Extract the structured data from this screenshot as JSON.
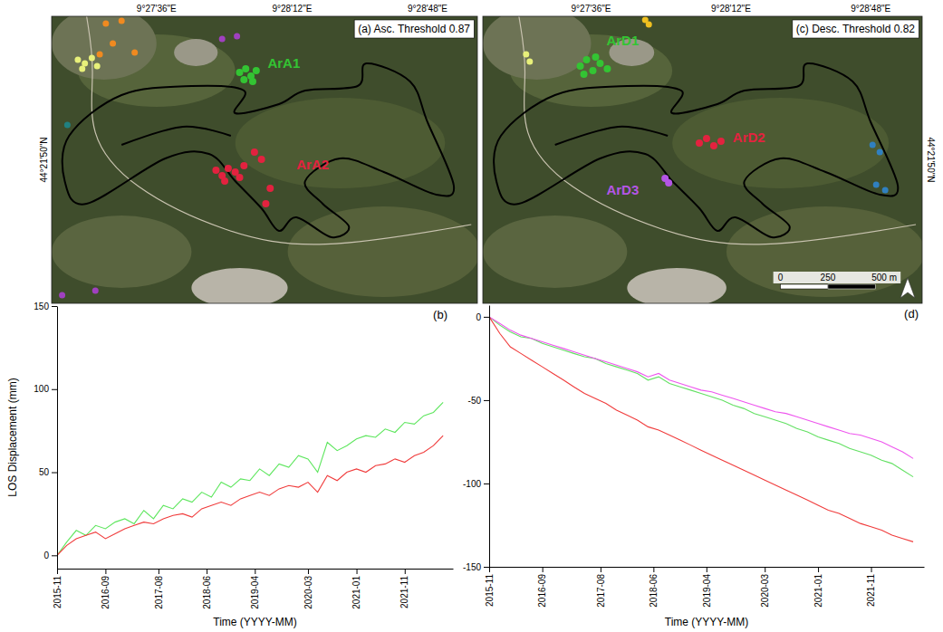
{
  "chart_data": [
    {
      "type": "line",
      "title": "(b)",
      "x_label": "Time (YYYY-MM)",
      "y_label": "LOS Displacement (mm)",
      "x": [
        "2015-11",
        "2016-01",
        "2016-03",
        "2016-05",
        "2016-07",
        "2016-09",
        "2016-11",
        "2017-01",
        "2017-03",
        "2017-05",
        "2017-07",
        "2017-09",
        "2017-11",
        "2018-01",
        "2018-03",
        "2018-05",
        "2018-07",
        "2018-09",
        "2018-11",
        "2019-01",
        "2019-03",
        "2019-05",
        "2019-07",
        "2019-09",
        "2019-11",
        "2020-01",
        "2020-03",
        "2020-05",
        "2020-07",
        "2020-09",
        "2020-11",
        "2021-01",
        "2021-03",
        "2021-05",
        "2021-07",
        "2021-09",
        "2021-11",
        "2022-01",
        "2022-03",
        "2022-05",
        "2022-07"
      ],
      "xlim": [
        "2015-11",
        "2022-09"
      ],
      "xticks": [
        "2015-11",
        "2016-09",
        "2017-08",
        "2018-06",
        "2019-04",
        "2020-03",
        "2021-01",
        "2021-11"
      ],
      "ylim": [
        -8,
        150
      ],
      "yticks": [
        0,
        50,
        100,
        150
      ],
      "series": [
        {
          "color": "#5ee65e",
          "values": [
            0,
            8,
            15,
            12,
            18,
            16,
            20,
            22,
            19,
            27,
            22,
            30,
            28,
            34,
            32,
            38,
            35,
            44,
            41,
            46,
            45,
            52,
            48,
            55,
            53,
            60,
            58,
            50,
            68,
            63,
            66,
            70,
            72,
            71,
            76,
            74,
            80,
            79,
            84,
            86,
            92
          ]
        },
        {
          "color": "#f03c3c",
          "values": [
            0,
            6,
            10,
            12,
            14,
            10,
            13,
            16,
            18,
            20,
            19,
            22,
            24,
            25,
            23,
            28,
            30,
            32,
            30,
            34,
            36,
            38,
            36,
            40,
            42,
            41,
            44,
            38,
            48,
            45,
            50,
            52,
            50,
            54,
            55,
            58,
            56,
            60,
            62,
            66,
            72
          ]
        }
      ]
    },
    {
      "type": "line",
      "title": "(d)",
      "x_label": "Time (YYYY-MM)",
      "x": [
        "2015-11",
        "2016-01",
        "2016-03",
        "2016-05",
        "2016-07",
        "2016-09",
        "2016-11",
        "2017-01",
        "2017-03",
        "2017-05",
        "2017-07",
        "2017-09",
        "2017-11",
        "2018-01",
        "2018-03",
        "2018-05",
        "2018-07",
        "2018-09",
        "2018-11",
        "2019-01",
        "2019-03",
        "2019-05",
        "2019-07",
        "2019-09",
        "2019-11",
        "2020-01",
        "2020-03",
        "2020-05",
        "2020-07",
        "2020-09",
        "2020-11",
        "2021-01",
        "2021-03",
        "2021-05",
        "2021-07",
        "2021-09",
        "2021-11",
        "2022-01",
        "2022-03",
        "2022-05",
        "2022-07"
      ],
      "xlim": [
        "2015-11",
        "2022-09"
      ],
      "xticks": [
        "2015-11",
        "2016-09",
        "2017-08",
        "2018-06",
        "2019-04",
        "2020-03",
        "2021-01",
        "2021-11"
      ],
      "ylim": [
        -150,
        7
      ],
      "yticks": [
        -150,
        -100,
        -50,
        0
      ],
      "series": [
        {
          "color": "#63e063",
          "values": [
            0,
            -5,
            -9,
            -12,
            -13,
            -16,
            -18,
            -20,
            -22,
            -24,
            -25,
            -28,
            -30,
            -32,
            -34,
            -38,
            -36,
            -40,
            -42,
            -44,
            -46,
            -48,
            -50,
            -53,
            -55,
            -58,
            -60,
            -62,
            -64,
            -67,
            -69,
            -72,
            -74,
            -76,
            -79,
            -81,
            -83,
            -86,
            -88,
            -92,
            -96
          ]
        },
        {
          "color": "#ee55ee",
          "values": [
            0,
            -4,
            -8,
            -11,
            -13,
            -15,
            -17,
            -19,
            -21,
            -23,
            -25,
            -27,
            -29,
            -31,
            -33,
            -36,
            -34,
            -38,
            -40,
            -42,
            -44,
            -45,
            -47,
            -49,
            -51,
            -53,
            -55,
            -57,
            -58,
            -60,
            -62,
            -64,
            -66,
            -68,
            -70,
            -71,
            -73,
            -75,
            -78,
            -81,
            -85
          ]
        },
        {
          "color": "#f03c3c",
          "values": [
            0,
            -10,
            -18,
            -22,
            -26,
            -30,
            -34,
            -38,
            -42,
            -46,
            -49,
            -52,
            -56,
            -59,
            -62,
            -66,
            -68,
            -71,
            -74,
            -77,
            -80,
            -83,
            -86,
            -89,
            -92,
            -95,
            -98,
            -101,
            -104,
            -107,
            -110,
            -113,
            -116,
            -118,
            -121,
            -124,
            -126,
            -128,
            -131,
            -133,
            -135
          ]
        }
      ]
    }
  ],
  "maps": [
    {
      "title": "(a) Asc. Threshold 0.87",
      "x_labels": [
        "9°27'36\"E",
        "9°28'12\"E",
        "9°28'48\"E"
      ],
      "y_label": "44°21'50\"N",
      "areas": [
        {
          "label": "ArA1",
          "color": "#33c433"
        },
        {
          "label": "ArA2",
          "color": "#e3223f"
        }
      ]
    },
    {
      "title": "(c) Desc. Threshold 0.82",
      "x_labels": [
        "9°27'36\"E",
        "9°28'12\"E",
        "9°28'48\"E"
      ],
      "y_label": "44°21'50\"N",
      "areas": [
        {
          "label": "ArD1",
          "color": "#33c433"
        },
        {
          "label": "ArD2",
          "color": "#e3223f"
        },
        {
          "label": "ArD3",
          "color": "#b455e6"
        }
      ],
      "scale_bar": [
        "0",
        "250",
        "500 m"
      ]
    }
  ]
}
